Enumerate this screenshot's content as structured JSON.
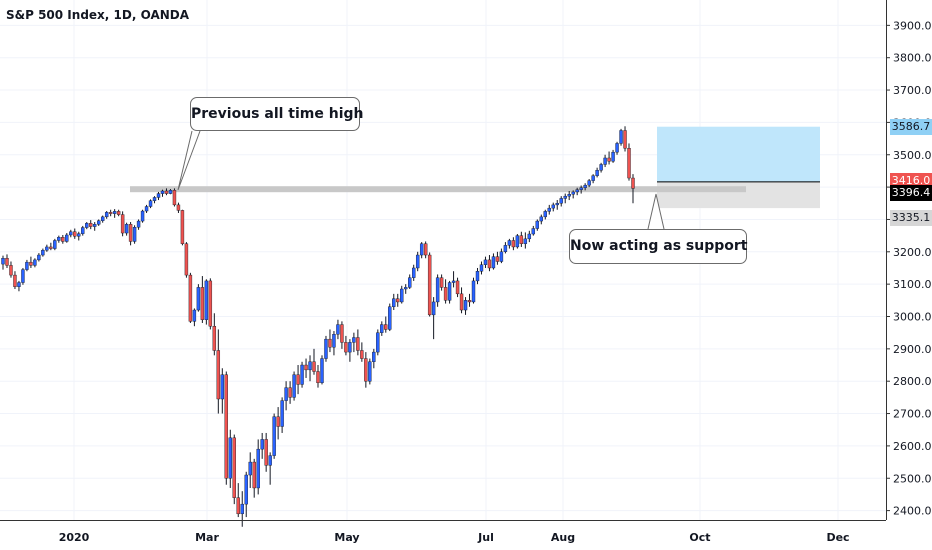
{
  "header": {
    "title": "S&P 500 Index, 1D, OANDA"
  },
  "annotations": {
    "callout_high": "Previous all time high",
    "callout_support": "Now acting as support"
  },
  "price_tags": [
    {
      "label": "3586.7",
      "price": 3586.7,
      "bg": "#8fd0f5",
      "fg": "#131722"
    },
    {
      "label": "3416.0",
      "price": 3416.0,
      "bg": "#ef5350",
      "fg": "#ffffff"
    },
    {
      "label": "3396.4",
      "price": 3396.4,
      "bg": "#000000",
      "fg": "#ffffff"
    },
    {
      "label": "3335.1",
      "price": 3335.1,
      "bg": "#d6d6d6",
      "fg": "#131722"
    }
  ],
  "colors": {
    "up": "#2962ff",
    "down": "#ef5350",
    "wick": "#131722",
    "support_line": "#c8c8c8",
    "target_zone": "#bfe6fb",
    "stop_zone": "#e3e3e3"
  },
  "chart_data": {
    "type": "candlestick",
    "title": "S&P 500 Index, 1D, OANDA",
    "ylim": [
      2350,
      4000
    ],
    "y_ticks": [
      2400,
      2500,
      2600,
      2700,
      2800,
      2900,
      3000,
      3100,
      3200,
      3300,
      3400,
      3500,
      3600,
      3700,
      3800,
      3900
    ],
    "x_tick_labels": [
      "2020",
      "Mar",
      "May",
      "Jul",
      "Aug",
      "Oct",
      "Dec"
    ],
    "previous_all_time_high": 3393.5,
    "position": {
      "entry": 3416.0,
      "target": 3586.7,
      "stop": 3335.1,
      "last": 3396.4
    },
    "candles": [
      [
        3162,
        3188,
        3145,
        3180
      ],
      [
        3180,
        3192,
        3150,
        3158
      ],
      [
        3158,
        3170,
        3120,
        3128
      ],
      [
        3128,
        3140,
        3085,
        3092
      ],
      [
        3092,
        3110,
        3078,
        3105
      ],
      [
        3105,
        3150,
        3098,
        3145
      ],
      [
        3145,
        3175,
        3140,
        3168
      ],
      [
        3168,
        3185,
        3150,
        3158
      ],
      [
        3158,
        3180,
        3152,
        3175
      ],
      [
        3175,
        3196,
        3170,
        3190
      ],
      [
        3190,
        3210,
        3185,
        3205
      ],
      [
        3205,
        3222,
        3200,
        3215
      ],
      [
        3215,
        3228,
        3205,
        3210
      ],
      [
        3210,
        3240,
        3205,
        3235
      ],
      [
        3235,
        3250,
        3228,
        3245
      ],
      [
        3245,
        3252,
        3225,
        3232
      ],
      [
        3232,
        3258,
        3228,
        3252
      ],
      [
        3252,
        3268,
        3245,
        3262
      ],
      [
        3262,
        3272,
        3240,
        3248
      ],
      [
        3248,
        3262,
        3235,
        3256
      ],
      [
        3256,
        3280,
        3250,
        3275
      ],
      [
        3275,
        3292,
        3270,
        3288
      ],
      [
        3288,
        3298,
        3270,
        3278
      ],
      [
        3278,
        3292,
        3265,
        3285
      ],
      [
        3285,
        3300,
        3280,
        3296
      ],
      [
        3296,
        3312,
        3290,
        3308
      ],
      [
        3308,
        3326,
        3302,
        3322
      ],
      [
        3322,
        3330,
        3310,
        3318
      ],
      [
        3318,
        3332,
        3305,
        3325
      ],
      [
        3325,
        3330,
        3310,
        3315
      ],
      [
        3315,
        3325,
        3248,
        3258
      ],
      [
        3258,
        3290,
        3250,
        3285
      ],
      [
        3285,
        3292,
        3220,
        3232
      ],
      [
        3232,
        3282,
        3225,
        3276
      ],
      [
        3276,
        3300,
        3268,
        3295
      ],
      [
        3295,
        3330,
        3290,
        3326
      ],
      [
        3326,
        3345,
        3320,
        3340
      ],
      [
        3340,
        3362,
        3335,
        3358
      ],
      [
        3358,
        3372,
        3350,
        3368
      ],
      [
        3368,
        3385,
        3360,
        3380
      ],
      [
        3380,
        3392,
        3370,
        3388
      ],
      [
        3388,
        3396,
        3375,
        3380
      ],
      [
        3380,
        3394,
        3378,
        3390
      ],
      [
        3390,
        3396,
        3340,
        3345
      ],
      [
        3345,
        3352,
        3320,
        3328
      ],
      [
        3328,
        3330,
        3220,
        3225
      ],
      [
        3225,
        3230,
        3120,
        3128
      ],
      [
        3128,
        3135,
        2980,
        2985
      ],
      [
        2985,
        3025,
        2970,
        3020
      ],
      [
        3020,
        3100,
        3015,
        3090
      ],
      [
        3090,
        3125,
        2980,
        2990
      ],
      [
        2990,
        3115,
        2975,
        3110
      ],
      [
        3110,
        3118,
        2960,
        2970
      ],
      [
        2970,
        3010,
        2880,
        2895
      ],
      [
        2895,
        2960,
        2700,
        2745
      ],
      [
        2745,
        2840,
        2700,
        2820
      ],
      [
        2820,
        2830,
        2480,
        2500
      ],
      [
        2500,
        2650,
        2470,
        2625
      ],
      [
        2625,
        2635,
        2420,
        2440
      ],
      [
        2440,
        2485,
        2380,
        2390
      ],
      [
        2390,
        2460,
        2350,
        2420
      ],
      [
        2420,
        2520,
        2380,
        2510
      ],
      [
        2510,
        2580,
        2470,
        2550
      ],
      [
        2550,
        2560,
        2440,
        2470
      ],
      [
        2470,
        2620,
        2450,
        2590
      ],
      [
        2590,
        2640,
        2560,
        2620
      ],
      [
        2620,
        2640,
        2520,
        2540
      ],
      [
        2540,
        2580,
        2480,
        2570
      ],
      [
        2570,
        2700,
        2560,
        2690
      ],
      [
        2690,
        2720,
        2620,
        2660
      ],
      [
        2660,
        2750,
        2640,
        2740
      ],
      [
        2740,
        2800,
        2710,
        2780
      ],
      [
        2780,
        2800,
        2730,
        2750
      ],
      [
        2750,
        2830,
        2740,
        2820
      ],
      [
        2820,
        2850,
        2760,
        2790
      ],
      [
        2790,
        2860,
        2780,
        2850
      ],
      [
        2850,
        2870,
        2810,
        2835
      ],
      [
        2835,
        2880,
        2800,
        2860
      ],
      [
        2860,
        2900,
        2820,
        2830
      ],
      [
        2830,
        2850,
        2780,
        2795
      ],
      [
        2795,
        2880,
        2790,
        2870
      ],
      [
        2870,
        2940,
        2860,
        2930
      ],
      [
        2930,
        2960,
        2890,
        2905
      ],
      [
        2905,
        2955,
        2880,
        2945
      ],
      [
        2945,
        2990,
        2930,
        2975
      ],
      [
        2975,
        2985,
        2900,
        2920
      ],
      [
        2920,
        2940,
        2880,
        2890
      ],
      [
        2890,
        2930,
        2860,
        2920
      ],
      [
        2920,
        2950,
        2890,
        2935
      ],
      [
        2935,
        2960,
        2880,
        2895
      ],
      [
        2895,
        2920,
        2860,
        2870
      ],
      [
        2870,
        2890,
        2780,
        2800
      ],
      [
        2800,
        2870,
        2790,
        2860
      ],
      [
        2860,
        2900,
        2840,
        2890
      ],
      [
        2890,
        2960,
        2880,
        2950
      ],
      [
        2950,
        2985,
        2940,
        2975
      ],
      [
        2975,
        3000,
        2950,
        2960
      ],
      [
        2960,
        3040,
        2955,
        3030
      ],
      [
        3030,
        3070,
        3020,
        3055
      ],
      [
        3055,
        3070,
        3030,
        3045
      ],
      [
        3045,
        3095,
        3040,
        3085
      ],
      [
        3085,
        3100,
        3070,
        3090
      ],
      [
        3090,
        3130,
        3085,
        3120
      ],
      [
        3120,
        3160,
        3110,
        3150
      ],
      [
        3150,
        3200,
        3140,
        3190
      ],
      [
        3190,
        3230,
        3180,
        3225
      ],
      [
        3225,
        3232,
        3180,
        3190
      ],
      [
        3190,
        3198,
        3000,
        3005
      ],
      [
        3005,
        3060,
        2930,
        3045
      ],
      [
        3045,
        3130,
        3030,
        3120
      ],
      [
        3120,
        3130,
        3080,
        3090
      ],
      [
        3090,
        3115,
        3040,
        3050
      ],
      [
        3050,
        3110,
        3040,
        3105
      ],
      [
        3105,
        3140,
        3090,
        3110
      ],
      [
        3110,
        3120,
        3060,
        3070
      ],
      [
        3070,
        3090,
        3010,
        3020
      ],
      [
        3020,
        3060,
        3005,
        3050
      ],
      [
        3050,
        3070,
        3030,
        3045
      ],
      [
        3045,
        3120,
        3040,
        3110
      ],
      [
        3110,
        3150,
        3100,
        3140
      ],
      [
        3140,
        3170,
        3130,
        3160
      ],
      [
        3160,
        3185,
        3150,
        3175
      ],
      [
        3175,
        3190,
        3140,
        3150
      ],
      [
        3150,
        3195,
        3145,
        3185
      ],
      [
        3185,
        3200,
        3160,
        3170
      ],
      [
        3170,
        3210,
        3165,
        3200
      ],
      [
        3200,
        3230,
        3195,
        3220
      ],
      [
        3220,
        3240,
        3210,
        3235
      ],
      [
        3235,
        3245,
        3205,
        3215
      ],
      [
        3215,
        3255,
        3210,
        3250
      ],
      [
        3250,
        3262,
        3215,
        3225
      ],
      [
        3225,
        3260,
        3210,
        3240
      ],
      [
        3240,
        3265,
        3230,
        3255
      ],
      [
        3255,
        3280,
        3250,
        3272
      ],
      [
        3272,
        3300,
        3265,
        3295
      ],
      [
        3295,
        3315,
        3285,
        3308
      ],
      [
        3308,
        3330,
        3300,
        3325
      ],
      [
        3325,
        3345,
        3315,
        3335
      ],
      [
        3335,
        3352,
        3325,
        3345
      ],
      [
        3345,
        3360,
        3330,
        3350
      ],
      [
        3350,
        3372,
        3340,
        3365
      ],
      [
        3365,
        3380,
        3350,
        3372
      ],
      [
        3372,
        3388,
        3360,
        3378
      ],
      [
        3378,
        3390,
        3365,
        3385
      ],
      [
        3385,
        3398,
        3375,
        3392
      ],
      [
        3392,
        3405,
        3380,
        3398
      ],
      [
        3398,
        3412,
        3390,
        3406
      ],
      [
        3406,
        3425,
        3400,
        3420
      ],
      [
        3420,
        3440,
        3412,
        3435
      ],
      [
        3435,
        3460,
        3430,
        3452
      ],
      [
        3452,
        3475,
        3445,
        3470
      ],
      [
        3470,
        3500,
        3462,
        3490
      ],
      [
        3490,
        3510,
        3470,
        3480
      ],
      [
        3480,
        3515,
        3475,
        3508
      ],
      [
        3508,
        3540,
        3500,
        3535
      ],
      [
        3535,
        3580,
        3528,
        3575
      ],
      [
        3575,
        3588,
        3510,
        3520
      ],
      [
        3520,
        3535,
        3420,
        3428
      ],
      [
        3428,
        3440,
        3350,
        3396
      ]
    ]
  }
}
